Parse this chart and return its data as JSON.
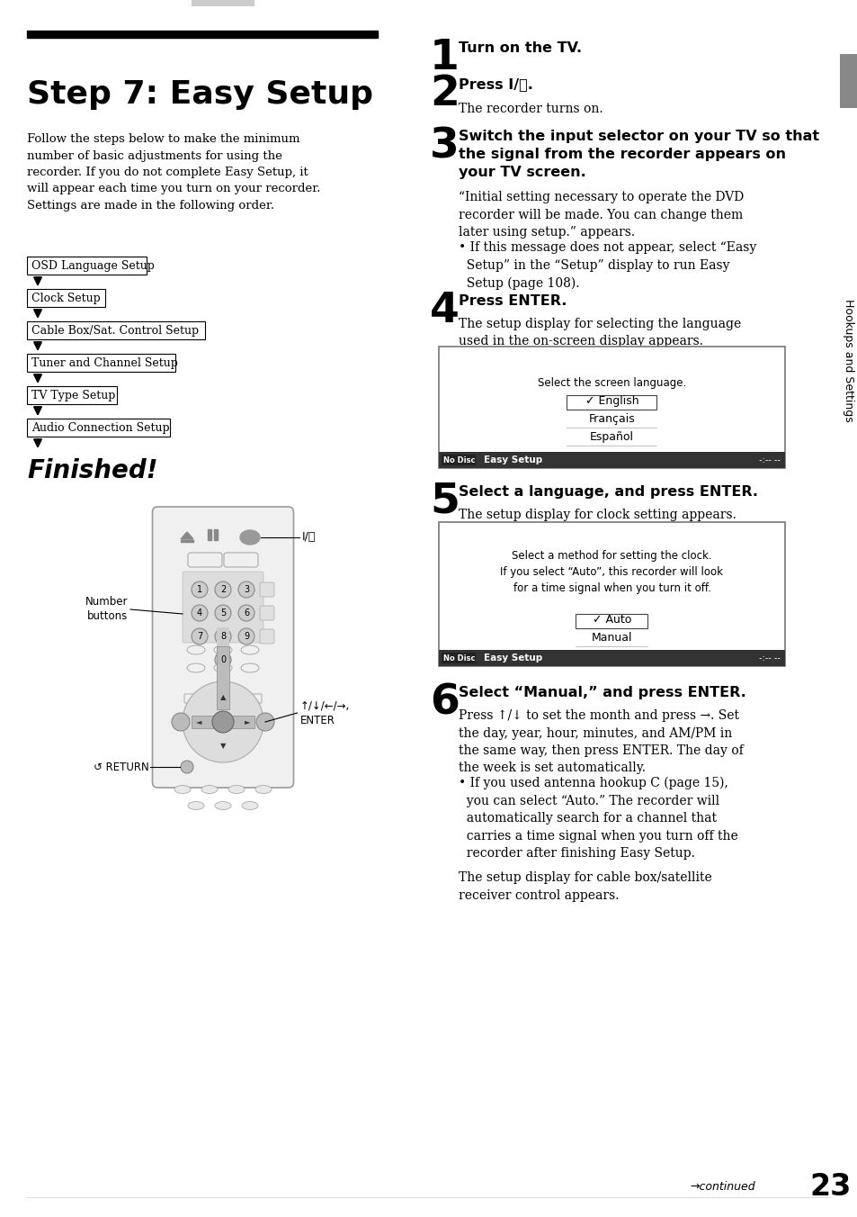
{
  "page_bg": "#ffffff",
  "title": "Step 7: Easy Setup",
  "intro_text": "Follow the steps below to make the minimum\nnumber of basic adjustments for using the\nrecorder. If you do not complete Easy Setup, it\nwill appear each time you turn on your recorder.\nSettings are made in the following order.",
  "flow_boxes": [
    "OSD Language Setup",
    "Clock Setup",
    "Cable Box/Sat. Control Setup",
    "Tuner and Channel Setup",
    "TV Type Setup",
    "Audio Connection Setup"
  ],
  "finished_text": "Finished!",
  "sidebar_text": "Hookups and Settings",
  "step1_head": "Turn on the TV.",
  "step2_head": "Press I/⏻.",
  "step2_body": "The recorder turns on.",
  "step3_head": "Switch the input selector on your TV so that\nthe signal from the recorder appears on\nyour TV screen.",
  "step3_body1": "“Initial setting necessary to operate the DVD\nrecorder will be made. You can change them\nlater using setup.” appears.",
  "step3_body2": "• If this message does not appear, select “Easy\n  Setup” in the “Setup” display to run Easy\n  Setup (page 108).",
  "step4_head": "Press ENTER.",
  "step4_body": "The setup display for selecting the language\nused in the on-screen display appears.",
  "screen1_hdr_left": "No Disc",
  "screen1_hdr_mid": "Easy Setup",
  "screen1_hdr_right": "-:-- --",
  "screen1_body": "Select the screen language.",
  "screen1_items": [
    "✓ English",
    "Français",
    "Español"
  ],
  "step5_head": "Select a language, and press ENTER.",
  "step5_body": "The setup display for clock setting appears.",
  "screen2_hdr_left": "No Disc",
  "screen2_hdr_mid": "Easy Setup",
  "screen2_hdr_right": "-:-- --",
  "screen2_body": "Select a method for setting the clock.\nIf you select “Auto”, this recorder will look\nfor a time signal when you turn it off.",
  "screen2_items": [
    "✓ Auto",
    "Manual"
  ],
  "step6_head": "Select “Manual,” and press ENTER.",
  "step6_body1": "Press ↑/↓ to set the month and press →. Set\nthe day, year, hour, minutes, and AM/PM in\nthe same way, then press ENTER. The day of\nthe week is set automatically.",
  "step6_body2": "• If you used antenna hookup C (page 15),\n  you can select “Auto.” The recorder will\n  automatically search for a channel that\n  carries a time signal when you turn off the\n  recorder after finishing Easy Setup.",
  "step6_footer": "The setup display for cable box/satellite\nreceiver control appears.",
  "footer_arrow": "→continued",
  "page_num": "23",
  "remote_lbl_num": "Number\nbuttons",
  "remote_lbl_power": "I/⏻",
  "remote_lbl_enter": "↑/↓/←/→,\nENTER",
  "remote_lbl_return": "↺ RETURN"
}
